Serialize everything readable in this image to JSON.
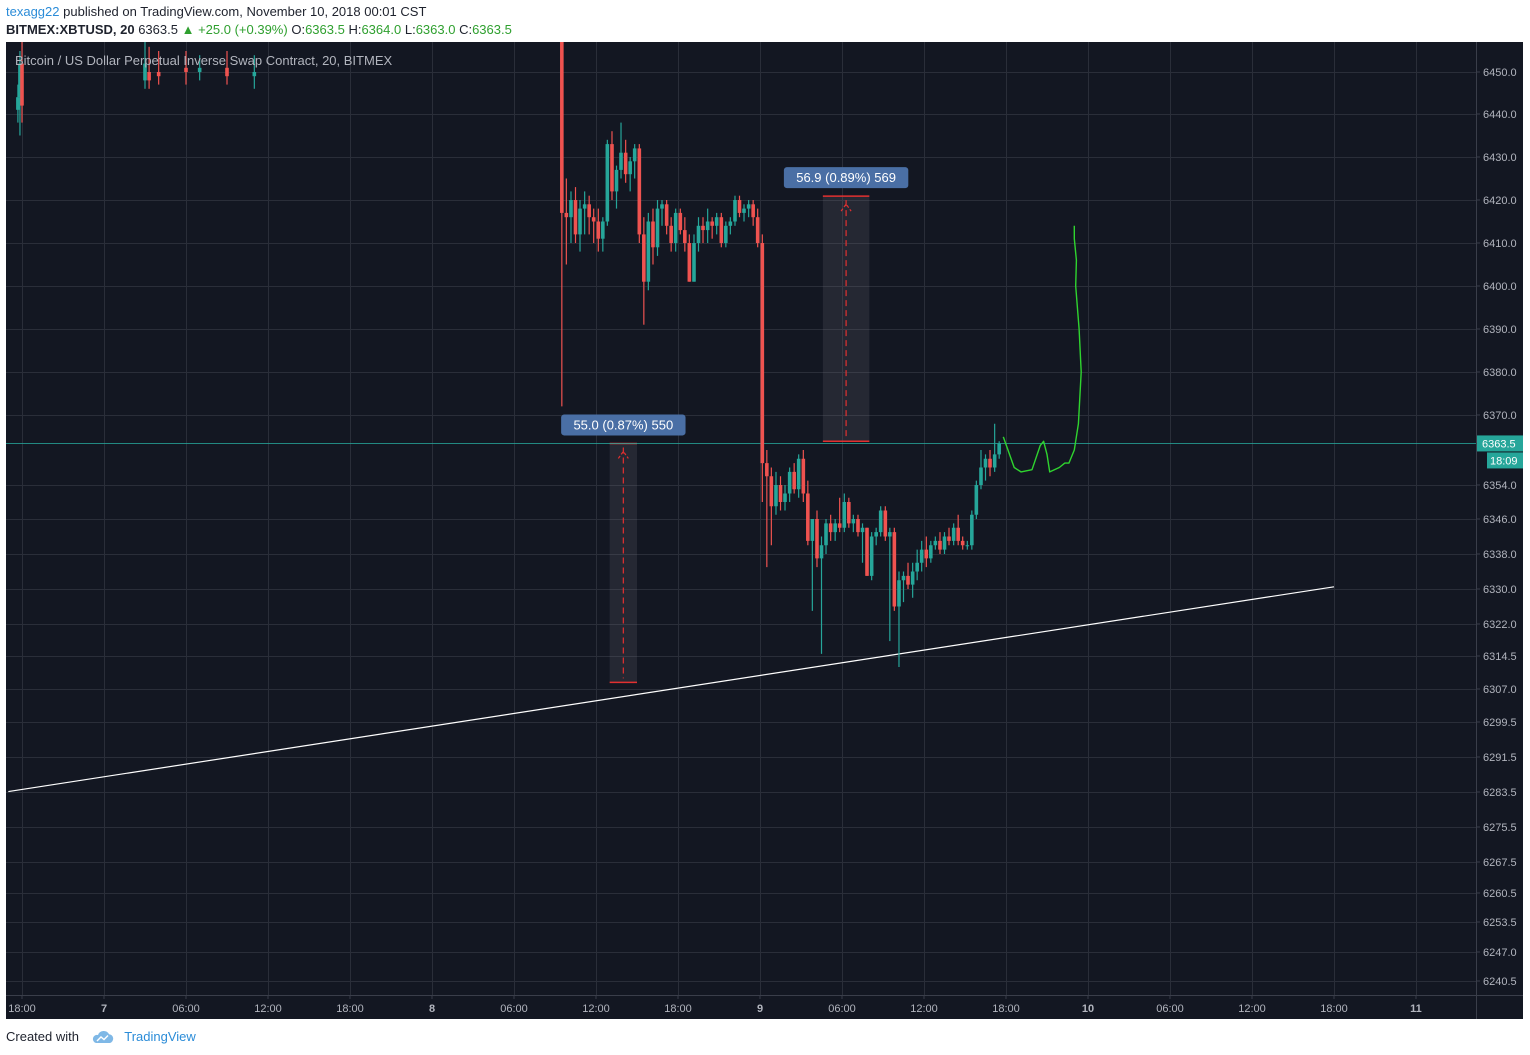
{
  "header": {
    "user": "texagg22",
    "published_text": "published on TradingView.com, November 10, 2018 00:01 CST",
    "symbol": "BITMEX:XBTUSD, 20",
    "last": "6363.5",
    "change": "▲ +25.0 (+0.39%)",
    "ohlc": [
      {
        "label": "O:",
        "value": "6363.5"
      },
      {
        "label": "H:",
        "value": "6364.0"
      },
      {
        "label": "L:",
        "value": "6363.0"
      },
      {
        "label": "C:",
        "value": "6363.5"
      }
    ]
  },
  "footer": {
    "created_with": "Created with",
    "brand": "TradingView"
  },
  "colors": {
    "background": "#131722",
    "grid": "#2a2e39",
    "up": "#26a69a",
    "down": "#ef5350",
    "axis_text": "#b2b5be",
    "trendline": "#ffffff",
    "projection": "#2fd42f",
    "measure_label": "#4a6fa5",
    "measure_line": "#e23030"
  },
  "chart_data": {
    "type": "candlestick",
    "title": "Bitcoin / US Dollar Perpetual Inverse Swap Contract, 20, BITMEX",
    "y_axis_side": "right",
    "price_ticks": [
      "6450.0",
      "6440.0",
      "6430.0",
      "6420.0",
      "6410.0",
      "6400.0",
      "6390.0",
      "6380.0",
      "6370.0",
      "6354.0",
      "6346.0",
      "6338.0",
      "6330.0",
      "6322.0",
      "6314.5",
      "6307.0",
      "6299.5",
      "6291.5",
      "6283.5",
      "6275.5",
      "6267.5",
      "6260.5",
      "6253.5",
      "6247.0",
      "6240.5"
    ],
    "time_ticks": [
      "18:00",
      "7",
      "06:00",
      "12:00",
      "18:00",
      "8",
      "06:00",
      "12:00",
      "18:00",
      "9",
      "06:00",
      "12:00",
      "18:00",
      "10",
      "06:00",
      "12:00",
      "18:00",
      "11"
    ],
    "bold_time_ticks": [
      "7",
      "8",
      "9",
      "10",
      "11"
    ],
    "last_price_label": "6363.5",
    "countdown_label": "18:09",
    "grid": true,
    "candles": [
      {
        "t": -0.3,
        "o": 6441,
        "h": 6447,
        "l": 6438,
        "c": 6444
      },
      {
        "t": -0.15,
        "o": 6444,
        "h": 6455,
        "l": 6435,
        "c": 6452
      },
      {
        "t": 0.0,
        "o": 6452,
        "h": 6460,
        "l": 6438,
        "c": 6442
      },
      {
        "t": 9.0,
        "o": 6448,
        "h": 6458,
        "l": 6446,
        "c": 6452
      },
      {
        "t": 9.3,
        "o": 6450,
        "h": 6456,
        "l": 6446,
        "c": 6448
      },
      {
        "t": 10.0,
        "o": 6450,
        "h": 6455,
        "l": 6447,
        "c": 6449
      },
      {
        "t": 12.0,
        "o": 6451,
        "h": 6455,
        "l": 6447,
        "c": 6450
      },
      {
        "t": 13.0,
        "o": 6450,
        "h": 6454,
        "l": 6448,
        "c": 6451
      },
      {
        "t": 15.0,
        "o": 6451,
        "h": 6455,
        "l": 6447,
        "c": 6449
      },
      {
        "t": 17.0,
        "o": 6449,
        "h": 6454,
        "l": 6446,
        "c": 6450
      },
      {
        "t": 39.5,
        "o": 6460,
        "h": 6460,
        "l": 6372,
        "c": 6417
      },
      {
        "t": 39.83,
        "o": 6417,
        "h": 6425,
        "l": 6405,
        "c": 6416
      },
      {
        "t": 40.17,
        "o": 6416,
        "h": 6422,
        "l": 6410,
        "c": 6420
      },
      {
        "t": 40.5,
        "o": 6420,
        "h": 6423,
        "l": 6410,
        "c": 6412
      },
      {
        "t": 40.83,
        "o": 6412,
        "h": 6420,
        "l": 6408,
        "c": 6418
      },
      {
        "t": 41.17,
        "o": 6418,
        "h": 6422,
        "l": 6412,
        "c": 6419
      },
      {
        "t": 41.5,
        "o": 6419,
        "h": 6421,
        "l": 6412,
        "c": 6416
      },
      {
        "t": 41.83,
        "o": 6416,
        "h": 6418,
        "l": 6410,
        "c": 6415
      },
      {
        "t": 42.17,
        "o": 6415,
        "h": 6418,
        "l": 6408,
        "c": 6411
      },
      {
        "t": 42.5,
        "o": 6411,
        "h": 6416,
        "l": 6408,
        "c": 6415
      },
      {
        "t": 42.83,
        "o": 6415,
        "h": 6434,
        "l": 6414,
        "c": 6433
      },
      {
        "t": 43.17,
        "o": 6433,
        "h": 6436,
        "l": 6420,
        "c": 6422
      },
      {
        "t": 43.5,
        "o": 6422,
        "h": 6428,
        "l": 6418,
        "c": 6427
      },
      {
        "t": 43.83,
        "o": 6427,
        "h": 6438,
        "l": 6425,
        "c": 6431
      },
      {
        "t": 44.17,
        "o": 6431,
        "h": 6434,
        "l": 6424,
        "c": 6426
      },
      {
        "t": 44.5,
        "o": 6426,
        "h": 6430,
        "l": 6422,
        "c": 6429
      },
      {
        "t": 44.83,
        "o": 6429,
        "h": 6433,
        "l": 6425,
        "c": 6432
      },
      {
        "t": 45.17,
        "o": 6432,
        "h": 6433,
        "l": 6410,
        "c": 6412
      },
      {
        "t": 45.5,
        "o": 6412,
        "h": 6416,
        "l": 6391,
        "c": 6401
      },
      {
        "t": 45.83,
        "o": 6401,
        "h": 6417,
        "l": 6399,
        "c": 6415
      },
      {
        "t": 46.17,
        "o": 6415,
        "h": 6418,
        "l": 6405,
        "c": 6409
      },
      {
        "t": 46.5,
        "o": 6409,
        "h": 6420,
        "l": 6407,
        "c": 6418
      },
      {
        "t": 46.83,
        "o": 6418,
        "h": 6420,
        "l": 6414,
        "c": 6419
      },
      {
        "t": 47.17,
        "o": 6419,
        "h": 6420,
        "l": 6412,
        "c": 6414
      },
      {
        "t": 47.5,
        "o": 6414,
        "h": 6416,
        "l": 6408,
        "c": 6410
      },
      {
        "t": 47.83,
        "o": 6410,
        "h": 6418,
        "l": 6408,
        "c": 6417
      },
      {
        "t": 48.17,
        "o": 6417,
        "h": 6418,
        "l": 6412,
        "c": 6413
      },
      {
        "t": 48.5,
        "o": 6413,
        "h": 6416,
        "l": 6408,
        "c": 6410
      },
      {
        "t": 48.83,
        "o": 6410,
        "h": 6412,
        "l": 6401,
        "c": 6401
      },
      {
        "t": 49.17,
        "o": 6401,
        "h": 6412,
        "l": 6401,
        "c": 6410
      },
      {
        "t": 49.5,
        "o": 6410,
        "h": 6416,
        "l": 6408,
        "c": 6414
      },
      {
        "t": 49.83,
        "o": 6414,
        "h": 6416,
        "l": 6410,
        "c": 6413
      },
      {
        "t": 50.17,
        "o": 6413,
        "h": 6418,
        "l": 6410,
        "c": 6415
      },
      {
        "t": 50.5,
        "o": 6415,
        "h": 6416,
        "l": 6411,
        "c": 6414
      },
      {
        "t": 50.83,
        "o": 6414,
        "h": 6417,
        "l": 6412,
        "c": 6416
      },
      {
        "t": 51.17,
        "o": 6416,
        "h": 6417,
        "l": 6409,
        "c": 6410
      },
      {
        "t": 51.5,
        "o": 6410,
        "h": 6415,
        "l": 6409,
        "c": 6414
      },
      {
        "t": 51.83,
        "o": 6414,
        "h": 6416,
        "l": 6412,
        "c": 6415
      },
      {
        "t": 52.17,
        "o": 6415,
        "h": 6421,
        "l": 6414,
        "c": 6420
      },
      {
        "t": 52.5,
        "o": 6420,
        "h": 6421,
        "l": 6416,
        "c": 6417
      },
      {
        "t": 52.83,
        "o": 6417,
        "h": 6419,
        "l": 6415,
        "c": 6418
      },
      {
        "t": 53.17,
        "o": 6418,
        "h": 6420,
        "l": 6416,
        "c": 6419
      },
      {
        "t": 53.5,
        "o": 6419,
        "h": 6420,
        "l": 6414,
        "c": 6416
      },
      {
        "t": 53.83,
        "o": 6416,
        "h": 6418,
        "l": 6409,
        "c": 6410
      },
      {
        "t": 54.17,
        "o": 6410,
        "h": 6412,
        "l": 6350,
        "c": 6359
      },
      {
        "t": 54.5,
        "o": 6359,
        "h": 6362,
        "l": 6335,
        "c": 6356
      },
      {
        "t": 54.83,
        "o": 6356,
        "h": 6358,
        "l": 6340,
        "c": 6349
      },
      {
        "t": 55.17,
        "o": 6349,
        "h": 6357,
        "l": 6347,
        "c": 6354
      },
      {
        "t": 55.5,
        "o": 6354,
        "h": 6356,
        "l": 6348,
        "c": 6350
      },
      {
        "t": 55.83,
        "o": 6350,
        "h": 6354,
        "l": 6348,
        "c": 6352
      },
      {
        "t": 56.17,
        "o": 6352,
        "h": 6358,
        "l": 6350,
        "c": 6357
      },
      {
        "t": 56.5,
        "o": 6357,
        "h": 6359,
        "l": 6352,
        "c": 6353
      },
      {
        "t": 56.83,
        "o": 6353,
        "h": 6361,
        "l": 6351,
        "c": 6360
      },
      {
        "t": 57.17,
        "o": 6360,
        "h": 6362,
        "l": 6350,
        "c": 6352
      },
      {
        "t": 57.5,
        "o": 6352,
        "h": 6355,
        "l": 6340,
        "c": 6341
      },
      {
        "t": 57.83,
        "o": 6341,
        "h": 6345,
        "l": 6325,
        "c": 6346
      },
      {
        "t": 58.17,
        "o": 6346,
        "h": 6348,
        "l": 6335,
        "c": 6337
      },
      {
        "t": 58.5,
        "o": 6337,
        "h": 6342,
        "l": 6315,
        "c": 6340
      },
      {
        "t": 58.83,
        "o": 6340,
        "h": 6346,
        "l": 6338,
        "c": 6345
      },
      {
        "t": 59.17,
        "o": 6345,
        "h": 6347,
        "l": 6341,
        "c": 6343
      },
      {
        "t": 59.5,
        "o": 6343,
        "h": 6346,
        "l": 6341,
        "c": 6345
      },
      {
        "t": 59.83,
        "o": 6345,
        "h": 6351,
        "l": 6343,
        "c": 6344
      },
      {
        "t": 60.17,
        "o": 6344,
        "h": 6352,
        "l": 6343,
        "c": 6350
      },
      {
        "t": 60.5,
        "o": 6350,
        "h": 6351,
        "l": 6344,
        "c": 6345
      },
      {
        "t": 60.83,
        "o": 6345,
        "h": 6347,
        "l": 6343,
        "c": 6346
      },
      {
        "t": 61.17,
        "o": 6346,
        "h": 6347,
        "l": 6342,
        "c": 6343
      },
      {
        "t": 61.5,
        "o": 6343,
        "h": 6345,
        "l": 6336,
        "c": 6344
      },
      {
        "t": 61.83,
        "o": 6344,
        "h": 6344,
        "l": 6333,
        "c": 6333
      },
      {
        "t": 62.17,
        "o": 6333,
        "h": 6343,
        "l": 6332,
        "c": 6342
      },
      {
        "t": 62.5,
        "o": 6342,
        "h": 6344,
        "l": 6340,
        "c": 6343
      },
      {
        "t": 62.83,
        "o": 6343,
        "h": 6349,
        "l": 6342,
        "c": 6348
      },
      {
        "t": 63.17,
        "o": 6348,
        "h": 6349,
        "l": 6341,
        "c": 6342
      },
      {
        "t": 63.5,
        "o": 6342,
        "h": 6344,
        "l": 6318,
        "c": 6343
      },
      {
        "t": 63.83,
        "o": 6343,
        "h": 6344,
        "l": 6325,
        "c": 6326
      },
      {
        "t": 64.17,
        "o": 6326,
        "h": 6334,
        "l": 6312,
        "c": 6332
      },
      {
        "t": 64.5,
        "o": 6332,
        "h": 6334,
        "l": 6327,
        "c": 6333
      },
      {
        "t": 64.83,
        "o": 6333,
        "h": 6336,
        "l": 6330,
        "c": 6331
      },
      {
        "t": 65.17,
        "o": 6331,
        "h": 6336,
        "l": 6328,
        "c": 6334
      },
      {
        "t": 65.5,
        "o": 6334,
        "h": 6339,
        "l": 6332,
        "c": 6336
      },
      {
        "t": 65.83,
        "o": 6336,
        "h": 6341,
        "l": 6334,
        "c": 6339
      },
      {
        "t": 66.17,
        "o": 6339,
        "h": 6342,
        "l": 6335,
        "c": 6337
      },
      {
        "t": 66.5,
        "o": 6337,
        "h": 6341,
        "l": 6336,
        "c": 6340
      },
      {
        "t": 66.83,
        "o": 6340,
        "h": 6342,
        "l": 6339,
        "c": 6341
      },
      {
        "t": 67.17,
        "o": 6341,
        "h": 6343,
        "l": 6338,
        "c": 6339
      },
      {
        "t": 67.5,
        "o": 6339,
        "h": 6343,
        "l": 6338,
        "c": 6342
      },
      {
        "t": 67.83,
        "o": 6342,
        "h": 6344,
        "l": 6340,
        "c": 6341
      },
      {
        "t": 68.17,
        "o": 6341,
        "h": 6345,
        "l": 6340,
        "c": 6344
      },
      {
        "t": 68.5,
        "o": 6344,
        "h": 6347,
        "l": 6340,
        "c": 6341
      },
      {
        "t": 68.83,
        "o": 6341,
        "h": 6342,
        "l": 6339,
        "c": 6340
      },
      {
        "t": 69.17,
        "o": 6340,
        "h": 6341,
        "l": 6339,
        "c": 6340
      },
      {
        "t": 69.5,
        "o": 6340,
        "h": 6348,
        "l": 6339,
        "c": 6347
      },
      {
        "t": 69.83,
        "o": 6347,
        "h": 6355,
        "l": 6346,
        "c": 6354
      },
      {
        "t": 70.17,
        "o": 6354,
        "h": 6362,
        "l": 6353,
        "c": 6358
      },
      {
        "t": 70.5,
        "o": 6358,
        "h": 6361,
        "l": 6355,
        "c": 6360
      },
      {
        "t": 70.83,
        "o": 6360,
        "h": 6362,
        "l": 6356,
        "c": 6358
      },
      {
        "t": 71.17,
        "o": 6358,
        "h": 6368,
        "l": 6357,
        "c": 6361
      },
      {
        "t": 71.5,
        "o": 6361,
        "h": 6364,
        "l": 6360,
        "c": 6363.5
      }
    ],
    "trendline": [
      {
        "t": -1.0,
        "p": 6283.6
      },
      {
        "t": 96.0,
        "p": 6330.5
      }
    ],
    "last_price_line": 6363.5,
    "measurements": [
      {
        "label": "55.0 (0.87%) 550",
        "t0": 43.0,
        "t1": 45.0,
        "p_low": 6308.5,
        "p_high": 6363.5,
        "direction": "down"
      },
      {
        "label": "56.9 (0.89%) 569",
        "t0": 58.6,
        "t1": 62.0,
        "p_low": 6364.0,
        "p_high": 6420.9,
        "direction": "up"
      }
    ],
    "projection_path": [
      {
        "t": 71.8,
        "p": 6365
      },
      {
        "t": 72.6,
        "p": 6358
      },
      {
        "t": 73.1,
        "p": 6357
      },
      {
        "t": 73.9,
        "p": 6357.5
      },
      {
        "t": 74.5,
        "p": 6363
      },
      {
        "t": 74.75,
        "p": 6364
      },
      {
        "t": 75.0,
        "p": 6361
      },
      {
        "t": 75.2,
        "p": 6357
      },
      {
        "t": 75.9,
        "p": 6358
      },
      {
        "t": 76.3,
        "p": 6359
      },
      {
        "t": 76.6,
        "p": 6359
      },
      {
        "t": 77.0,
        "p": 6362
      },
      {
        "t": 77.3,
        "p": 6368
      },
      {
        "t": 77.5,
        "p": 6380
      },
      {
        "t": 77.35,
        "p": 6390
      },
      {
        "t": 77.1,
        "p": 6400
      },
      {
        "t": 77.15,
        "p": 6406
      },
      {
        "t": 77.0,
        "p": 6411
      },
      {
        "t": 77.0,
        "p": 6414
      }
    ]
  }
}
